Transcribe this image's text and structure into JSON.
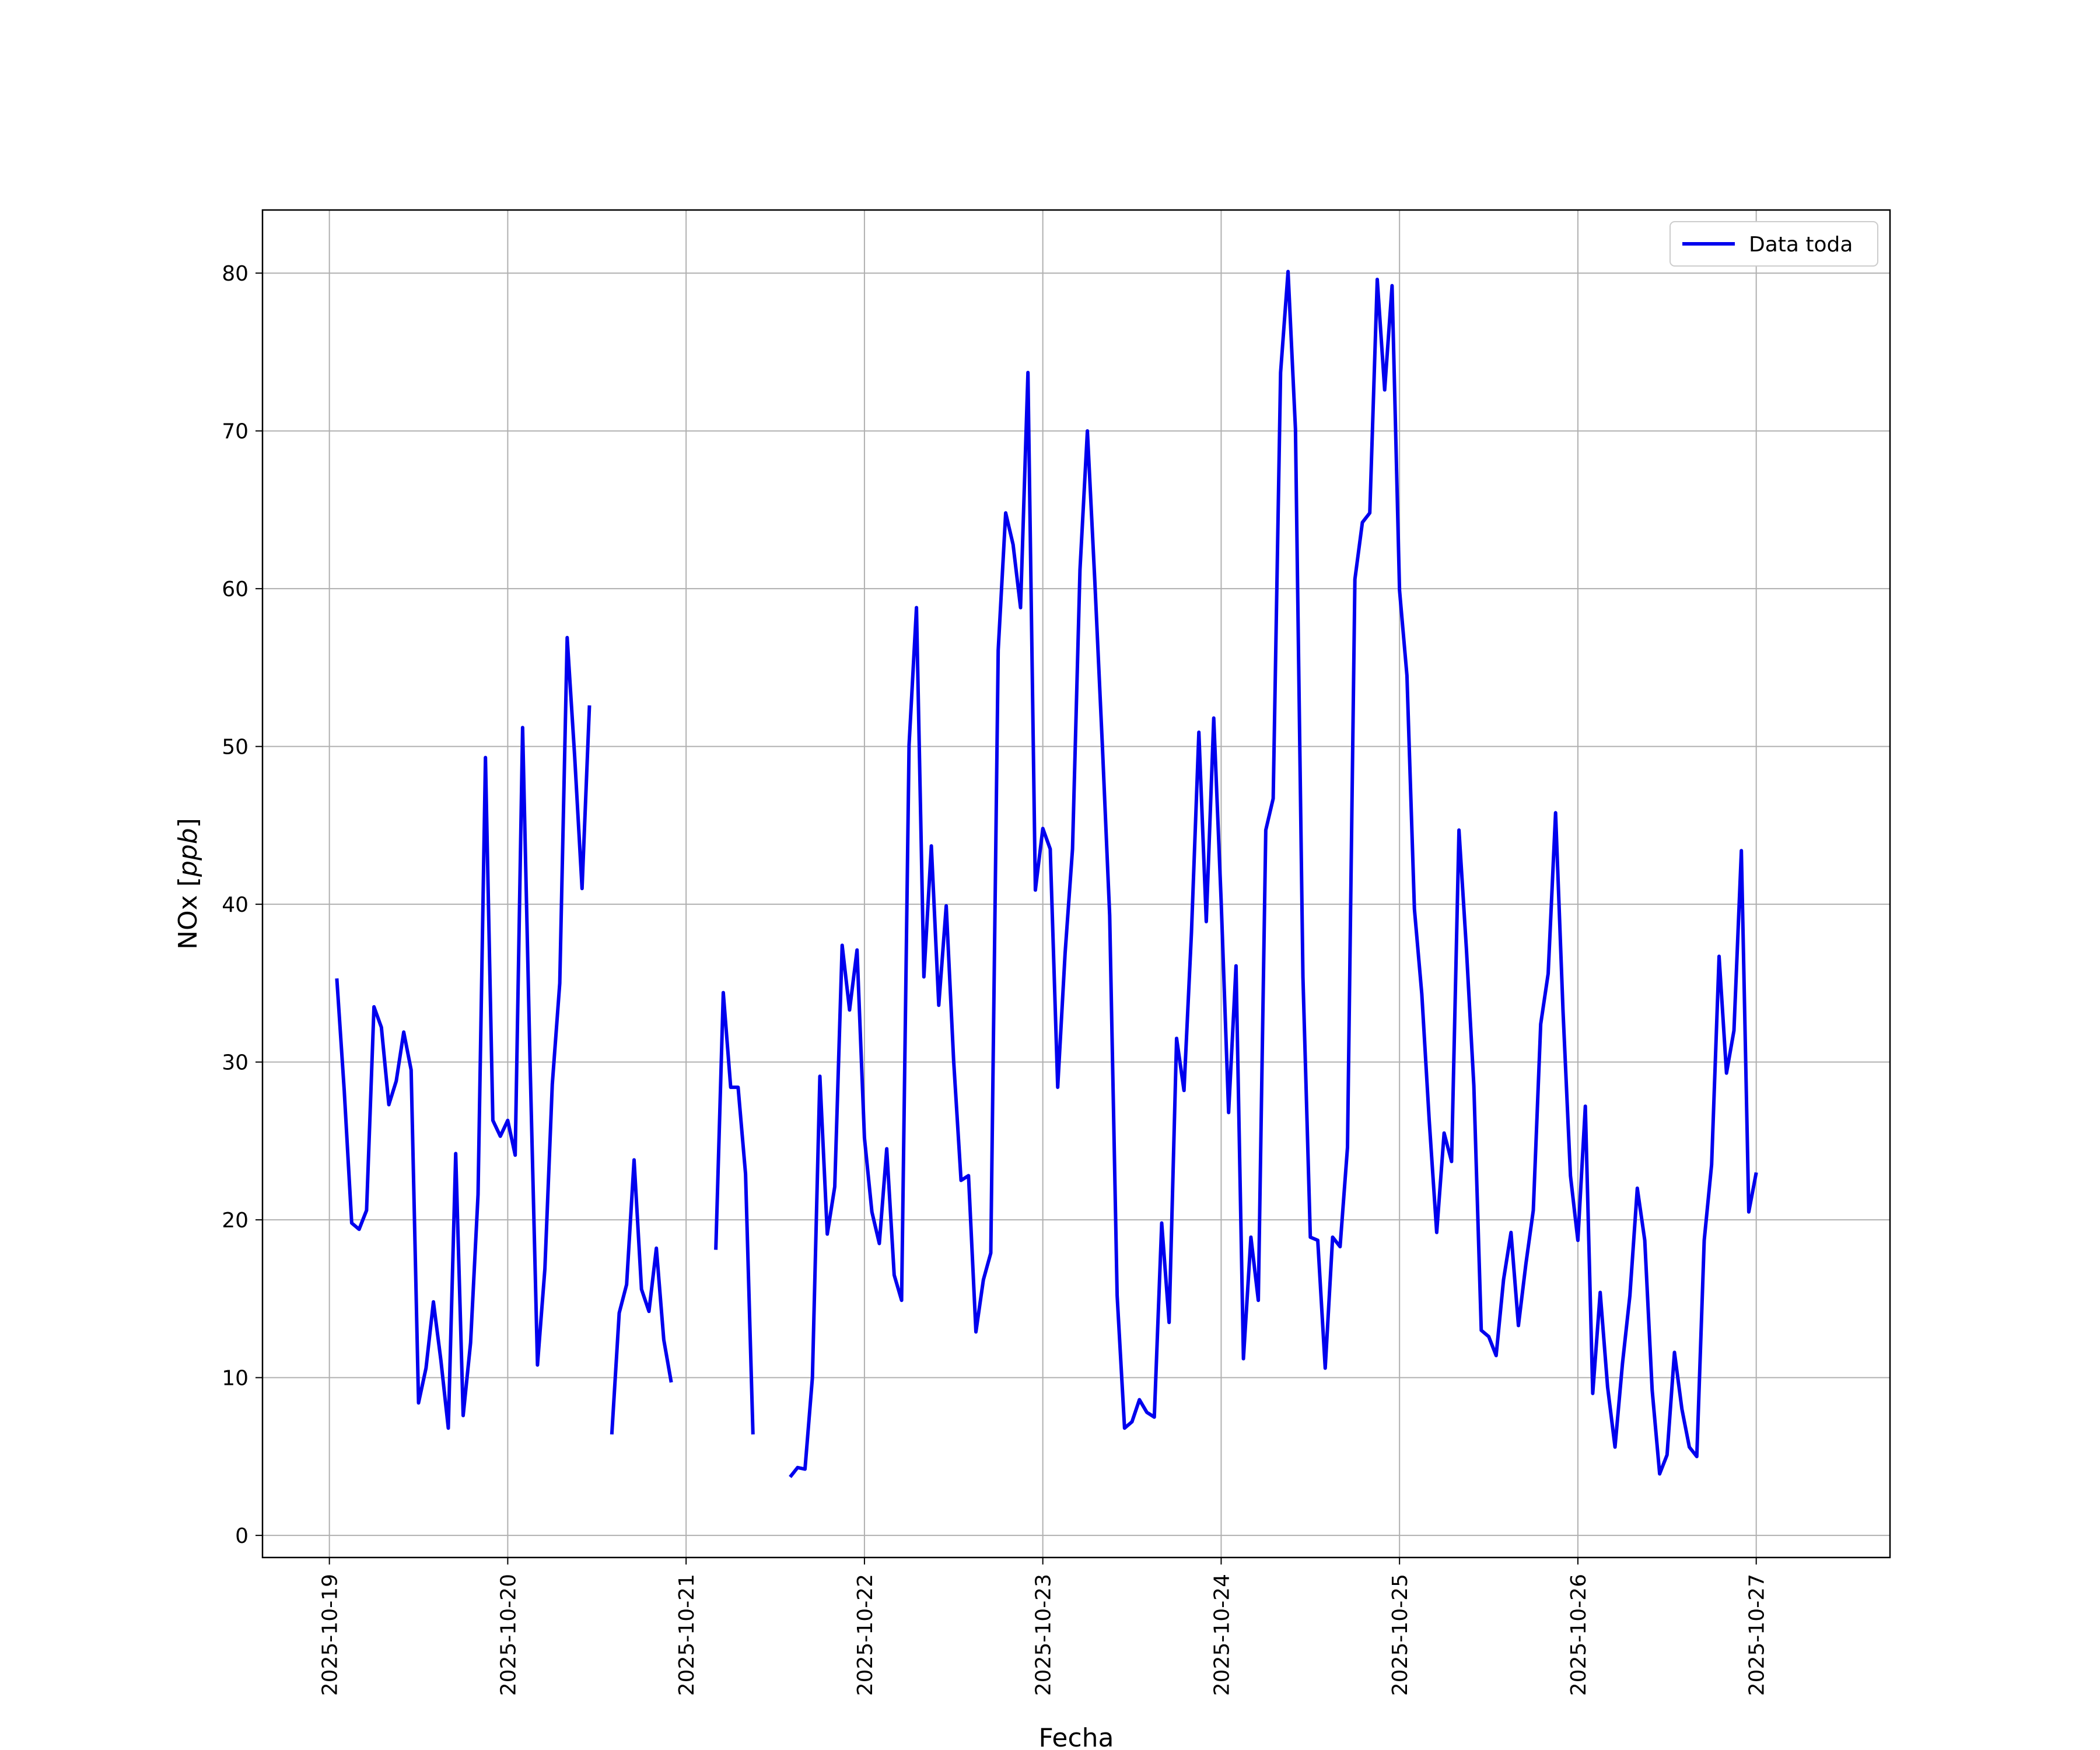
{
  "chart_data": {
    "type": "line",
    "title": "",
    "xlabel": "Fecha",
    "ylabel_prefix": "NOx [",
    "ylabel_unit": "ppb",
    "ylabel_suffix": "]",
    "xlim": [
      "2025-10-18T15:00",
      "2025-10-27T18:00"
    ],
    "ylim": [
      -1.4,
      84
    ],
    "y_ticks": [
      0,
      10,
      20,
      30,
      40,
      50,
      60,
      70,
      80
    ],
    "x_ticks": [
      "2025-10-19",
      "2025-10-20",
      "2025-10-21",
      "2025-10-22",
      "2025-10-23",
      "2025-10-24",
      "2025-10-25",
      "2025-10-26",
      "2025-10-27"
    ],
    "x_tick_label_rotation": "vertical",
    "grid": true,
    "legend_position": "top-right",
    "line_color": "#0000ee",
    "series": [
      {
        "name": "Data toda",
        "start": "2025-10-19T01:00",
        "step_hours": 1,
        "values": [
          35.3,
          28.2,
          19.8,
          19.4,
          20.6,
          33.5,
          32.2,
          27.3,
          28.8,
          31.9,
          29.5,
          8.4,
          10.6,
          14.8,
          11.1,
          6.8,
          24.2,
          7.6,
          12.2,
          21.6,
          49.3,
          26.3,
          25.3,
          26.3,
          24.1,
          51.2,
          30.1,
          10.8,
          16.9,
          28.6,
          35.0,
          56.9,
          49.4,
          41.0,
          52.6,
          null,
          null,
          6.4,
          14.1,
          15.9,
          23.8,
          15.6,
          14.2,
          18.2,
          12.4,
          9.7,
          null,
          null,
          null,
          null,
          null,
          18.1,
          34.4,
          28.4,
          28.4,
          22.9,
          6.4,
          null,
          null,
          null,
          null,
          3.7,
          4.3,
          4.2,
          10.0,
          29.1,
          19.1,
          22.1,
          37.4,
          33.3,
          37.1,
          25.2,
          20.5,
          18.5,
          24.5,
          16.5,
          14.9,
          50.1,
          58.8,
          35.4,
          43.7,
          33.6,
          39.9,
          30.1,
          22.5,
          22.8,
          12.9,
          16.2,
          17.9,
          56.1,
          64.8,
          62.8,
          58.8,
          73.7,
          40.9,
          44.8,
          43.5,
          28.4,
          36.9,
          43.5,
          61.2,
          70.0,
          60.5,
          50.2,
          39.3,
          15.2,
          6.8,
          7.2,
          8.6,
          7.8,
          7.5,
          19.8,
          13.5,
          31.5,
          28.2,
          38.2,
          50.9,
          38.9,
          51.8,
          40.2,
          26.8,
          36.1,
          11.2,
          18.9,
          14.9,
          44.7,
          46.7,
          73.7,
          80.1,
          70.1,
          35.4,
          18.9,
          18.7,
          10.6,
          18.9,
          18.3,
          24.6,
          60.6,
          64.2,
          64.8,
          79.6,
          72.6,
          79.2,
          59.9,
          54.5,
          39.7,
          34.3,
          26.3,
          19.2,
          25.5,
          23.7,
          44.7,
          37.2,
          28.5,
          13.0,
          12.6,
          11.4,
          16.2,
          19.2,
          13.3,
          17.2,
          20.6,
          32.4,
          35.6,
          45.8,
          33.2,
          22.8,
          18.7,
          27.2,
          9.0,
          15.4,
          9.4,
          5.6,
          10.9,
          15.2,
          22.0,
          18.7,
          9.2,
          3.9,
          5.1,
          11.6,
          8.0,
          5.6,
          5.0,
          18.7,
          23.5,
          36.7,
          29.3,
          32.0,
          43.4,
          20.5,
          23.0
        ]
      }
    ]
  }
}
